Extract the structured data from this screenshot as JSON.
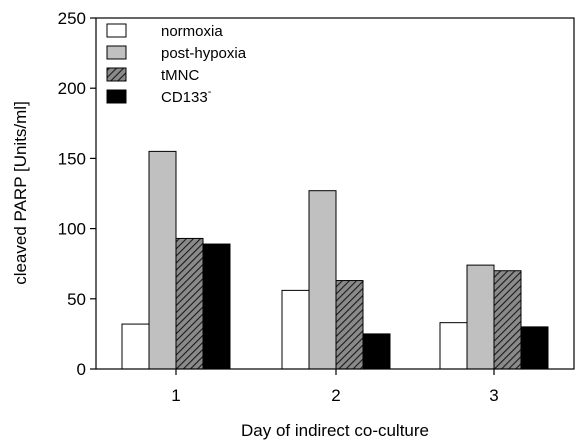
{
  "chart_data": {
    "type": "bar",
    "categories": [
      "1",
      "2",
      "3"
    ],
    "series": [
      {
        "name": "normoxia",
        "fill": "#ffffff",
        "pattern": "solid",
        "values": [
          32,
          56,
          33
        ]
      },
      {
        "name": "post-hypoxia",
        "fill": "#c0c0c0",
        "pattern": "solid",
        "values": [
          155,
          127,
          74
        ]
      },
      {
        "name": "tMNC",
        "fill": "#707070",
        "pattern": "hatched",
        "values": [
          93,
          63,
          70
        ]
      },
      {
        "name": "CD133-",
        "fill": "#000000",
        "pattern": "solid",
        "values": [
          89,
          25,
          30
        ]
      }
    ],
    "xlabel": "Day of indirect co-culture",
    "ylabel": "cleaved PARP [Units/ml]",
    "ylim": [
      0,
      250
    ],
    "yticks": [
      0,
      50,
      100,
      150,
      200,
      250
    ],
    "grid": false,
    "legend_position": "top-left"
  }
}
